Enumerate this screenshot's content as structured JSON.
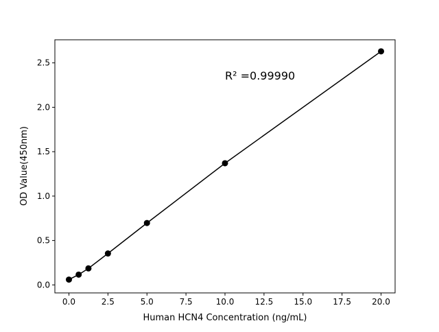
{
  "chart_data": {
    "type": "scatter",
    "title": "",
    "xlabel": "Human HCN4 Concentration (ng/mL)",
    "ylabel": "OD Value(450nm)",
    "xlim": [
      -0.9,
      20.9
    ],
    "ylim": [
      -0.09,
      2.76
    ],
    "xticks": [
      0.0,
      2.5,
      5.0,
      7.5,
      10.0,
      12.5,
      15.0,
      17.5,
      20.0
    ],
    "xtick_labels": [
      "0.0",
      "2.5",
      "5.0",
      "7.5",
      "10.0",
      "12.5",
      "15.0",
      "17.5",
      "20.0"
    ],
    "yticks": [
      0.0,
      0.5,
      1.0,
      1.5,
      2.0,
      2.5
    ],
    "ytick_labels": [
      "0.0",
      "0.5",
      "1.0",
      "1.5",
      "2.0",
      "2.5"
    ],
    "grid": false,
    "series": [
      {
        "x": [
          0,
          0.625,
          1.25,
          2.5,
          5,
          10,
          20
        ],
        "y": [
          0.06,
          0.116,
          0.186,
          0.354,
          0.697,
          1.37,
          2.63
        ],
        "color": "#000000",
        "marker": "circle",
        "line": true
      }
    ],
    "annotations": [
      {
        "text": "R² =0.99990",
        "x": 10.0,
        "y": 2.36
      }
    ]
  }
}
